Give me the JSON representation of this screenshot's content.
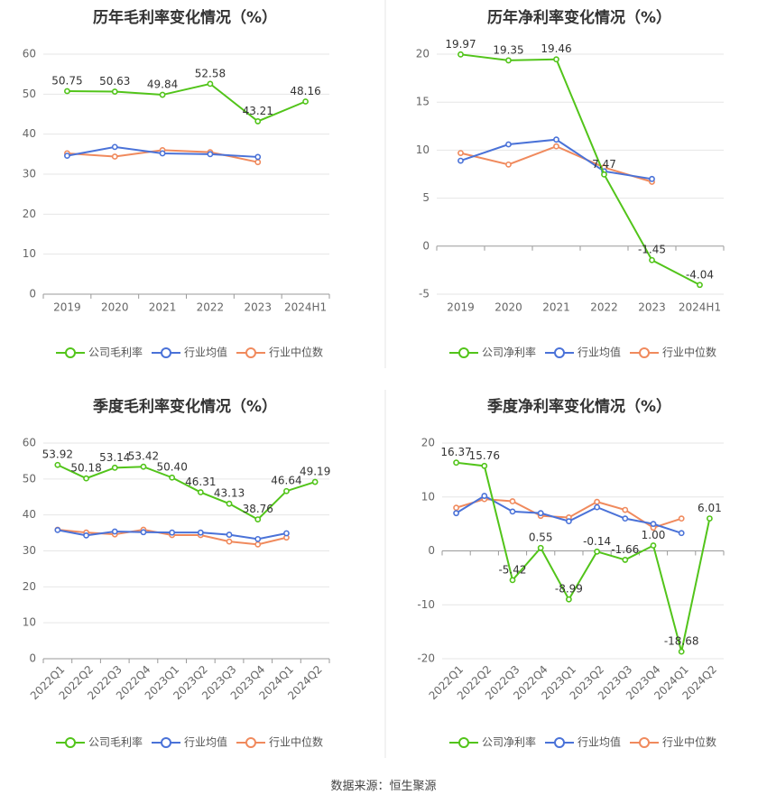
{
  "source": "数据来源：恒生聚源",
  "colors": {
    "company": "#52c41a",
    "avg": "#4a72d8",
    "median": "#f08a5d",
    "grid": "#e6e6e6",
    "axis": "#9a9a9a",
    "text": "#666666",
    "title": "#333333",
    "divider": "#e5e5e5"
  },
  "chart_data": [
    {
      "type": "line",
      "title": "历年毛利率变化情况（%）",
      "categories": [
        "2019",
        "2020",
        "2021",
        "2022",
        "2023",
        "2024H1"
      ],
      "ylim": [
        0,
        60
      ],
      "yticks": [
        "0",
        "10",
        "20",
        "30",
        "40",
        "50",
        "60"
      ],
      "grid": true,
      "legend": "bottom-center",
      "series": [
        {
          "name": "公司毛利率",
          "values": [
            50.75,
            50.63,
            49.84,
            52.58,
            43.21,
            48.16
          ],
          "labels": [
            "50.75",
            "50.63",
            "49.84",
            "52.58",
            "43.21",
            "48.16"
          ]
        },
        {
          "name": "行业均值",
          "values": [
            34.6,
            36.8,
            35.2,
            35.0,
            34.3,
            null
          ]
        },
        {
          "name": "行业中位数",
          "values": [
            35.2,
            34.4,
            36.0,
            35.5,
            33.0,
            null
          ]
        }
      ]
    },
    {
      "type": "line",
      "title": "历年净利率变化情况（%）",
      "categories": [
        "2019",
        "2020",
        "2021",
        "2022",
        "2023",
        "2024H1"
      ],
      "ylim": [
        -5,
        20
      ],
      "yticks": [
        "-5",
        "0",
        "5",
        "10",
        "15",
        "20"
      ],
      "grid": true,
      "legend": "bottom-center",
      "series": [
        {
          "name": "公司净利率",
          "values": [
            19.97,
            19.35,
            19.46,
            7.47,
            -1.45,
            -4.04
          ],
          "labels": [
            "19.97",
            "19.35",
            "19.46",
            "7.47",
            "-1.45",
            "-4.04"
          ]
        },
        {
          "name": "行业均值",
          "values": [
            8.9,
            10.6,
            11.1,
            7.8,
            7.0,
            null
          ]
        },
        {
          "name": "行业中位数",
          "values": [
            9.7,
            8.5,
            10.4,
            8.2,
            6.7,
            null
          ]
        }
      ]
    },
    {
      "type": "line",
      "title": "季度毛利率变化情况（%）",
      "categories": [
        "2022Q1",
        "2022Q2",
        "2022Q3",
        "2022Q4",
        "2023Q1",
        "2023Q2",
        "2023Q3",
        "2023Q4",
        "2024Q1",
        "2024Q2"
      ],
      "ylim": [
        0,
        60
      ],
      "yticks": [
        "0",
        "10",
        "20",
        "30",
        "40",
        "50",
        "60"
      ],
      "grid": true,
      "legend": "bottom-center",
      "series": [
        {
          "name": "公司毛利率",
          "values": [
            53.92,
            50.18,
            53.14,
            53.42,
            50.4,
            46.31,
            43.13,
            38.76,
            46.64,
            49.19
          ],
          "labels": [
            "53.92",
            "50.18",
            "53.14",
            "53.42",
            "50.40",
            "46.31",
            "43.13",
            "38.76",
            "46.64",
            "49.19"
          ]
        },
        {
          "name": "行业均值",
          "values": [
            35.8,
            34.3,
            35.4,
            35.2,
            35.1,
            35.1,
            34.5,
            33.3,
            34.9,
            null
          ]
        },
        {
          "name": "行业中位数",
          "values": [
            35.9,
            35.1,
            34.6,
            35.9,
            34.4,
            34.4,
            32.6,
            31.8,
            33.7,
            null
          ]
        }
      ]
    },
    {
      "type": "line",
      "title": "季度净利率变化情况（%）",
      "categories": [
        "2022Q1",
        "2022Q2",
        "2022Q3",
        "2022Q4",
        "2023Q1",
        "2023Q2",
        "2023Q3",
        "2023Q4",
        "2024Q1",
        "2024Q2"
      ],
      "ylim": [
        -20,
        20
      ],
      "yticks": [
        "-20",
        "-10",
        "0",
        "10",
        "20"
      ],
      "grid": true,
      "legend": "bottom-center",
      "series": [
        {
          "name": "公司净利率",
          "values": [
            16.37,
            15.76,
            -5.42,
            0.55,
            -8.99,
            -0.14,
            -1.66,
            1.0,
            -18.68,
            6.01
          ],
          "labels": [
            "16.37",
            "15.76",
            "-5.42",
            "0.55",
            "-8.99",
            "-0.14",
            "-1.66",
            "1.00",
            "-18.68",
            "6.01"
          ]
        },
        {
          "name": "行业均值",
          "values": [
            7.0,
            10.2,
            7.3,
            7.0,
            5.5,
            8.1,
            6.0,
            5.0,
            3.3,
            null
          ]
        },
        {
          "name": "行业中位数",
          "values": [
            8.0,
            9.6,
            9.2,
            6.5,
            6.2,
            9.1,
            7.6,
            4.3,
            6.0,
            null
          ]
        }
      ]
    }
  ]
}
